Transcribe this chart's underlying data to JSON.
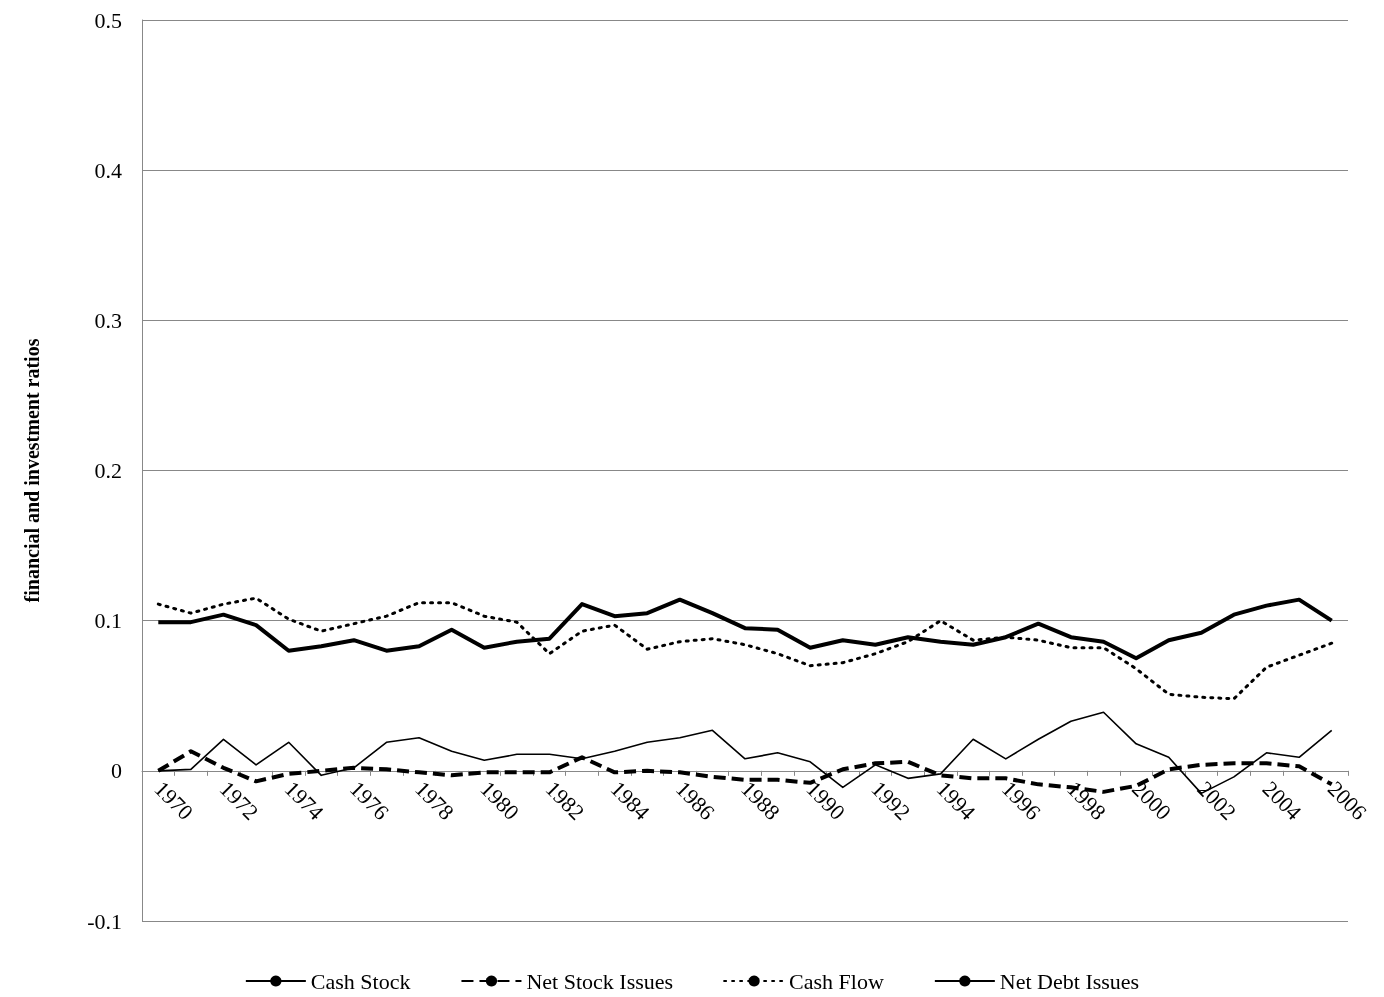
{
  "chart_data": {
    "type": "line",
    "ylabel": "financial and investment ratios",
    "categories": [
      "1970",
      null,
      "1972",
      null,
      "1974",
      null,
      "1976",
      null,
      "1978",
      null,
      "1980",
      null,
      "1982",
      null,
      "1984",
      null,
      "1986",
      null,
      "1988",
      null,
      "1990",
      null,
      "1992",
      null,
      "1994",
      null,
      "1996",
      null,
      "1998",
      null,
      "2000",
      null,
      "2002",
      null,
      "2004",
      null,
      "2006"
    ],
    "series": [
      {
        "name": "Cash Stock",
        "color": "#000000",
        "line_style": "solid",
        "values": [
          0.099,
          0.099,
          0.104,
          0.097,
          0.08,
          0.083,
          0.087,
          0.08,
          0.083,
          0.094,
          0.082,
          0.086,
          0.088,
          0.111,
          0.103,
          0.105,
          0.114,
          0.105,
          0.095,
          0.094,
          0.082,
          0.087,
          0.084,
          0.089,
          0.086,
          0.084,
          0.089,
          0.098,
          0.089,
          0.086,
          0.075,
          0.087,
          0.092,
          0.104,
          0.11,
          0.114,
          0.1
        ]
      },
      {
        "name": "Net Stock Issues",
        "color": "#000000",
        "line_style": "dashed",
        "values": [
          0.0,
          0.013,
          0.002,
          -0.007,
          -0.002,
          0.0,
          0.002,
          0.001,
          -0.001,
          -0.003,
          -0.001,
          -0.001,
          -0.001,
          0.009,
          -0.001,
          0.0,
          -0.001,
          -0.004,
          -0.006,
          -0.006,
          -0.008,
          0.001,
          0.005,
          0.006,
          -0.003,
          -0.005,
          -0.005,
          -0.009,
          -0.011,
          -0.014,
          -0.01,
          0.001,
          0.004,
          0.005,
          0.005,
          0.003,
          -0.009
        ]
      },
      {
        "name": "Cash Flow",
        "color": "#000000",
        "line_style": "dotted",
        "values": [
          0.111,
          0.105,
          0.111,
          0.115,
          0.101,
          0.093,
          0.098,
          0.103,
          0.112,
          0.112,
          0.103,
          0.099,
          0.078,
          0.093,
          0.097,
          0.081,
          0.086,
          0.088,
          0.084,
          0.078,
          0.07,
          0.072,
          0.078,
          0.086,
          0.1,
          0.087,
          0.089,
          0.087,
          0.082,
          0.082,
          0.068,
          0.051,
          0.049,
          0.048,
          0.069,
          0.077,
          0.085
        ]
      },
      {
        "name": "Net Debt Issues",
        "color": "#000000",
        "line_style": "solid",
        "values": [
          0.0,
          0.001,
          0.021,
          0.004,
          0.019,
          -0.003,
          0.002,
          0.019,
          0.022,
          0.013,
          0.007,
          0.011,
          0.011,
          0.008,
          0.013,
          0.019,
          0.022,
          0.027,
          0.008,
          0.012,
          0.006,
          -0.011,
          0.004,
          -0.005,
          -0.002,
          0.021,
          0.008,
          0.021,
          0.033,
          0.039,
          0.018,
          0.009,
          -0.015,
          -0.004,
          0.012,
          0.009,
          0.027
        ]
      }
    ],
    "ylim": [
      -0.1,
      0.5
    ],
    "yticks": [
      -0.1,
      0,
      0.1,
      0.2,
      0.3,
      0.4,
      0.5
    ],
    "grid": "y",
    "legend": "bottom",
    "marker": "none"
  }
}
